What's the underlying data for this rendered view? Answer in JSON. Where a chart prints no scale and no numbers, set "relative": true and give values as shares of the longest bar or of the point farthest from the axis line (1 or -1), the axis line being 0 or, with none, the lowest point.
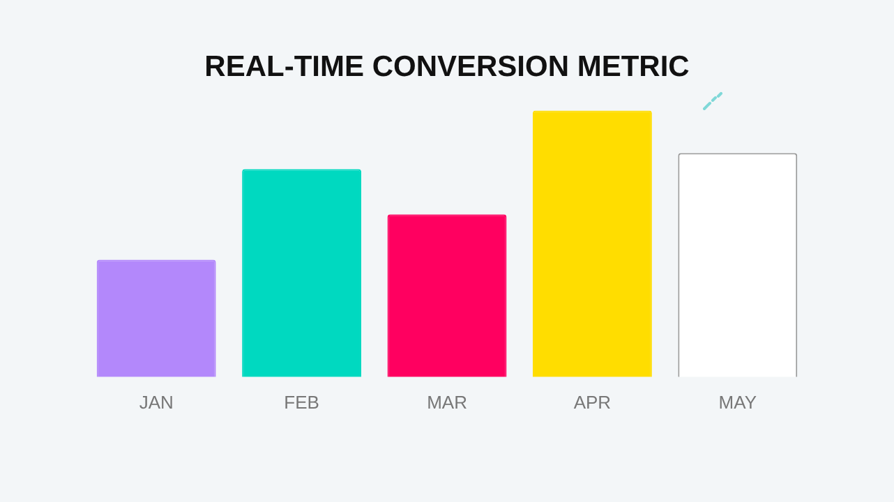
{
  "chart_data": {
    "type": "bar",
    "title": "REAL-TIME CONVERSION METRIC",
    "relative": true,
    "categories": [
      "JAN",
      "FEB",
      "MAR",
      "APR",
      "MAY"
    ],
    "values": [
      0.44,
      0.78,
      0.61,
      1,
      0.84
    ],
    "colors": [
      "#b388fb",
      "#00d9c0",
      "#ff0060",
      "#ffdd00",
      "#ffffff"
    ]
  }
}
